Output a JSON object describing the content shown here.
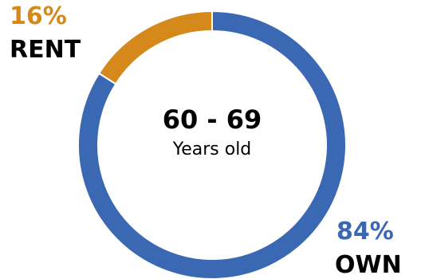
{
  "chart_data": {
    "type": "pie",
    "center_title": "60 - 69",
    "center_subtitle": "Years old",
    "slices": [
      {
        "label": "RENT",
        "value": 16,
        "value_label": "16%",
        "color": "#d4891a"
      },
      {
        "label": "OWN",
        "value": 84,
        "value_label": "84%",
        "color": "#3b68b3"
      }
    ]
  }
}
